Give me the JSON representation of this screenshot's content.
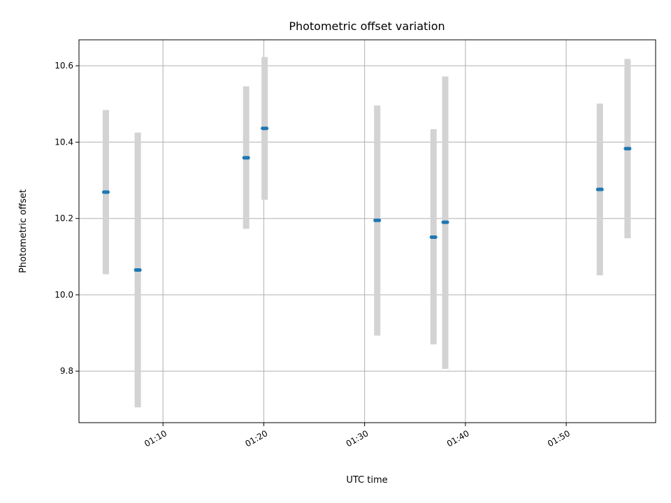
{
  "chart_data": {
    "type": "scatter",
    "title": "Photometric offset variation",
    "xlabel": "UTC time",
    "ylabel": "Photometric offset",
    "x_ticks": [
      "01:10",
      "01:20",
      "01:30",
      "01:40",
      "01:50"
    ],
    "y_ticks": [
      "9.8",
      "10.0",
      "10.2",
      "10.4",
      "10.6"
    ],
    "xlim": [
      "01:01:40",
      "01:58:52"
    ],
    "ylim": [
      9.665,
      10.668
    ],
    "grid": true,
    "marker_color": "#1f77b4",
    "errorbar_color": "#d3d3d3",
    "points": [
      {
        "x": "01:04:20",
        "y": 10.269,
        "yerr_low": 10.054,
        "yerr_high": 10.484
      },
      {
        "x": "01:07:30",
        "y": 10.065,
        "yerr_low": 9.705,
        "yerr_high": 10.425
      },
      {
        "x": "01:18:15",
        "y": 10.359,
        "yerr_low": 10.173,
        "yerr_high": 10.546
      },
      {
        "x": "01:20:05",
        "y": 10.436,
        "yerr_low": 10.249,
        "yerr_high": 10.623
      },
      {
        "x": "01:31:15",
        "y": 10.195,
        "yerr_low": 9.893,
        "yerr_high": 10.496
      },
      {
        "x": "01:36:50",
        "y": 10.151,
        "yerr_low": 9.87,
        "yerr_high": 10.434
      },
      {
        "x": "01:38:00",
        "y": 10.19,
        "yerr_low": 9.806,
        "yerr_high": 10.572
      },
      {
        "x": "01:53:20",
        "y": 10.276,
        "yerr_low": 10.051,
        "yerr_high": 10.501
      },
      {
        "x": "01:56:05",
        "y": 10.383,
        "yerr_low": 10.148,
        "yerr_high": 10.618
      }
    ]
  }
}
